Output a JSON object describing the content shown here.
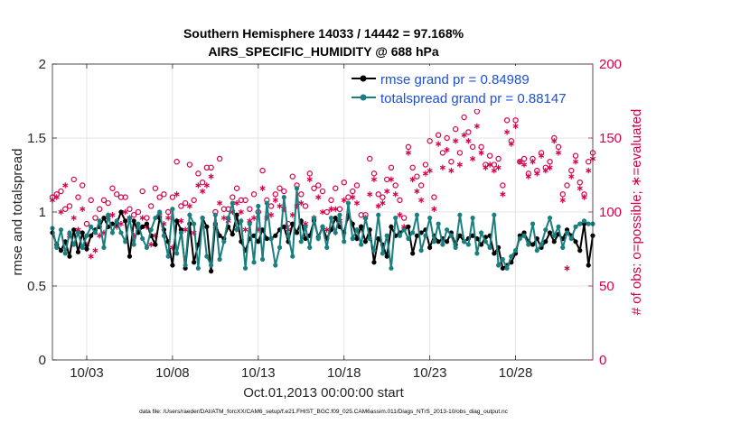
{
  "chart_data": {
    "type": "line",
    "title": "Southern Hemisphere 14033 / 14442 = 97.168%",
    "subtitle": "AIRS_SPECIFIC_HUMIDITY @ 688 hPa",
    "xlabel": "Oct.01,2013 00:00:00 start",
    "ylabel": "rmse and totalspread",
    "ylabel_right": "# of obs: o=possible; ∗=evaluated",
    "footnote": "data file: /Users/raeder/DAI/ATM_forcXX/CAM6_setup/f.e21.FHIST_BGC.f09_025.CAM6assim.011/Diags_NTrS_2013-10/obs_diag_output.nc",
    "x_range_days": [
      1.0,
      32.5
    ],
    "ylim": [
      0,
      2
    ],
    "ylim_right": [
      0,
      200
    ],
    "x_ticks": [
      {
        "day": 3,
        "label": "10/03"
      },
      {
        "day": 8,
        "label": "10/08"
      },
      {
        "day": 13,
        "label": "10/13"
      },
      {
        "day": 18,
        "label": "10/18"
      },
      {
        "day": 23,
        "label": "10/23"
      },
      {
        "day": 28,
        "label": "10/28"
      }
    ],
    "y_ticks": [
      "0",
      "0.5",
      "1",
      "1.5",
      "2"
    ],
    "y_tick_values": [
      0,
      0.5,
      1,
      1.5,
      2
    ],
    "y_right_ticks": [
      "0",
      "50",
      "100",
      "150",
      "200"
    ],
    "y_right_tick_values": [
      0,
      50,
      100,
      150,
      200
    ],
    "series": [
      {
        "name": "rmse grand pr = 0.84989",
        "color": "#000000",
        "x_start_day": 1.0,
        "x_step_day": 0.25,
        "values": [
          0.86,
          0.78,
          0.74,
          0.8,
          0.7,
          0.88,
          0.73,
          0.86,
          0.75,
          0.84,
          0.88,
          0.9,
          0.96,
          0.9,
          0.92,
          0.92,
          1.0,
          0.94,
          0.7,
          0.94,
          0.86,
          0.9,
          0.92,
          0.84,
          0.78,
          0.96,
          0.88,
          0.8,
          0.64,
          0.94,
          0.88,
          0.62,
          0.92,
          0.66,
          0.78,
          0.96,
          0.9,
          0.6,
          0.92,
          0.84,
          0.82,
          0.9,
          0.85,
          0.98,
          0.8,
          0.74,
          0.82,
          0.84,
          0.8,
          0.88,
          0.82,
          0.82,
          0.84,
          0.88,
          0.9,
          0.8,
          0.92,
          0.86,
          0.94,
          0.82,
          0.84,
          0.94,
          0.83,
          0.9,
          0.82,
          0.88,
          0.96,
          0.9,
          0.86,
          0.98,
          0.92,
          0.82,
          0.9,
          0.8,
          0.88,
          0.66,
          0.82,
          0.78,
          0.7,
          0.9,
          0.84,
          0.86,
          0.88,
          0.9,
          0.72,
          0.84,
          0.86,
          0.88,
          0.76,
          0.84,
          0.8,
          0.82,
          0.8,
          0.86,
          0.78,
          0.84,
          0.8,
          0.82,
          0.84,
          0.82,
          0.78,
          0.83,
          0.84,
          0.72,
          0.76,
          0.62,
          0.64,
          0.66,
          0.72,
          0.84,
          0.86,
          0.8,
          0.78,
          0.82,
          0.76,
          0.8,
          0.86,
          0.8,
          0.85,
          0.82,
          0.88,
          0.84,
          0.8,
          0.74,
          0.92,
          0.64,
          0.84,
          0.82,
          0.86,
          0.8,
          0.94,
          0.9,
          0.92,
          0.88,
          0.94,
          0.96,
          1.0,
          0.92,
          0.8,
          0.86,
          0.9,
          0.78,
          0.98,
          0.86,
          0.92,
          0.84,
          0.8,
          0.82,
          0.9,
          0.86,
          0.78,
          0.9,
          0.84,
          0.82,
          0.88,
          0.9,
          0.96,
          0.86,
          0.8,
          0.84,
          0.94,
          0.58,
          0.9,
          0.96,
          1.0,
          0.9,
          0.84,
          0.86,
          0.8,
          0.9,
          0.84,
          0.86,
          0.94,
          0.86,
          0.78,
          0.84,
          0.98,
          0.84,
          0.92,
          0.8,
          0.88,
          0.84,
          0.78,
          1.06,
          0.76
        ]
      },
      {
        "name": "totalspread grand pr = 0.88147",
        "color": "#1a7f7f",
        "x_start_day": 1.0,
        "x_step_day": 0.25,
        "values": [
          0.89,
          0.76,
          0.88,
          0.72,
          0.86,
          0.78,
          0.86,
          0.76,
          0.84,
          0.9,
          0.86,
          0.94,
          0.76,
          0.98,
          0.86,
          0.94,
          0.86,
          0.8,
          0.96,
          0.78,
          0.92,
          0.82,
          0.76,
          0.88,
          0.96,
          1.0,
          0.84,
          0.7,
          1.02,
          0.72,
          0.86,
          0.64,
          0.98,
          0.92,
          0.62,
          0.96,
          0.7,
          0.64,
          0.98,
          0.68,
          0.8,
          0.96,
          1.06,
          0.88,
          0.94,
          0.62,
          0.92,
          0.66,
          1.04,
          0.68,
          1.06,
          0.82,
          0.64,
          0.76,
          1.1,
          0.84,
          0.7,
          1.16,
          0.8,
          0.9,
          0.76,
          0.96,
          0.82,
          0.9,
          0.76,
          0.96,
          0.86,
          0.98,
          0.8,
          1.06,
          0.82,
          0.88,
          0.78,
          0.96,
          0.82,
          0.74,
          0.98,
          0.72,
          0.84,
          0.62,
          0.96,
          0.84,
          0.88,
          0.82,
          0.86,
          0.98,
          0.74,
          0.84,
          0.96,
          0.8,
          0.92,
          0.78,
          0.88,
          0.84,
          0.76,
          0.98,
          0.8,
          0.78,
          0.96,
          0.72,
          0.86,
          0.8,
          0.76,
          0.98,
          0.64,
          0.68,
          0.62,
          0.7,
          0.74,
          0.82,
          0.84,
          0.78,
          0.92,
          0.74,
          0.78,
          0.88,
          0.96,
          0.84,
          0.9,
          0.76,
          0.86,
          0.82,
          0.9,
          0.92,
          0.94,
          0.92,
          0.92,
          0.96,
          0.94,
          0.9,
          0.94,
          0.92,
          0.92,
          0.9,
          1.0,
          0.98,
          1.02,
          0.94,
          0.96,
          0.88,
          1.0,
          0.92,
          1.04,
          0.96,
          0.96,
          0.92,
          0.9,
          0.88,
          1.02,
          0.86,
          0.84,
          1.0,
          0.88,
          0.92,
          0.94,
          0.88,
          1.0,
          0.9,
          0.88,
          0.94,
          1.04,
          0.86,
          1.02,
          0.92,
          0.94,
          0.9,
          0.96,
          0.92,
          0.88,
          0.94,
          0.9,
          0.96,
          0.92,
          0.84,
          0.94,
          0.88,
          0.96,
          0.86,
          0.92,
          0.88,
          0.92,
          0.84,
          1.14,
          0.84
        ]
      }
    ],
    "obs_possible": {
      "name": "o = possible",
      "color": "#d6004c",
      "x_start_day": 1.0,
      "x_step_day": 0.25,
      "values": [
        110,
        112,
        114,
        102,
        104,
        122,
        110,
        118,
        92,
        108,
        96,
        102,
        108,
        106,
        116,
        112,
        110,
        110,
        102,
        98,
        100,
        114,
        96,
        104,
        116,
        110,
        112,
        100,
        110,
        134,
        104,
        106,
        132,
        108,
        126,
        120,
        130,
        130,
        100,
        136,
        102,
        102,
        110,
        116,
        108,
        108,
        102,
        112,
        100,
        128,
        108,
        104,
        112,
        116,
        114,
        92,
        124,
        118,
        112,
        104,
        126,
        116,
        118,
        114,
        100,
        108,
        116,
        102,
        120,
        110,
        114,
        118,
        98,
        98,
        136,
        126,
        112,
        110,
        122,
        130,
        118,
        108,
        96,
        144,
        130,
        124,
        118,
        132,
        148,
        110,
        152,
        140,
        150,
        134,
        156,
        140,
        164,
        154,
        144,
        168,
        144,
        132,
        138,
        132,
        136,
        118,
        162,
        148,
        162,
        134,
        136,
        126,
        136,
        128,
        140,
        130,
        134,
        150,
        144,
        112,
        118,
        128,
        138,
        120,
        112,
        134,
        140,
        140,
        146,
        138,
        122,
        150,
        112,
        116,
        142,
        130,
        128,
        150,
        128,
        134,
        124,
        116,
        142,
        138,
        152,
        116,
        138,
        130,
        134,
        156,
        150,
        138,
        118,
        122,
        138,
        130,
        140,
        118,
        150,
        158,
        142,
        142,
        140,
        146,
        148,
        144,
        140,
        148,
        140,
        150,
        130,
        148,
        128,
        158,
        154,
        120,
        132,
        140,
        128,
        130,
        128,
        128
      ]
    },
    "obs_evaluated": {
      "name": "∗ = evaluated",
      "color": "#d6004c",
      "x_start_day": 1.0,
      "x_step_day": 0.25,
      "values": [
        108,
        110,
        100,
        118,
        84,
        96,
        88,
        102,
        78,
        70,
        74,
        84,
        86,
        96,
        98,
        90,
        92,
        100,
        96,
        84,
        88,
        96,
        90,
        78,
        84,
        98,
        92,
        96,
        76,
        112,
        94,
        88,
        104,
        86,
        118,
        114,
        118,
        124,
        90,
        106,
        96,
        94,
        100,
        106,
        100,
        88,
        94,
        96,
        88,
        116,
        96,
        98,
        108,
        104,
        102,
        88,
        98,
        104,
        106,
        92,
        122,
        96,
        110,
        100,
        88,
        102,
        102,
        94,
        108,
        96,
        110,
        106,
        90,
        96,
        112,
        122,
        104,
        106,
        114,
        122,
        112,
        98,
        90,
        140,
        122,
        114,
        108,
        126,
        128,
        102,
        146,
        130,
        142,
        128,
        148,
        132,
        152,
        148,
        136,
        158,
        140,
        130,
        132,
        128,
        130,
        112,
        154,
        146,
        158,
        134,
        132,
        124,
        134,
        126,
        138,
        128,
        130,
        148,
        140,
        108,
        62,
        124,
        134,
        116,
        110,
        128,
        136,
        136,
        144,
        134,
        118,
        148,
        110,
        114,
        140,
        128,
        126,
        148,
        126,
        130,
        120,
        112,
        140,
        136,
        150,
        112,
        134,
        128,
        130,
        152,
        146,
        134,
        116,
        120,
        134,
        128,
        136,
        116,
        148,
        154,
        138,
        140,
        138,
        142,
        146,
        142,
        136,
        146,
        136,
        148,
        128,
        146,
        126,
        154,
        150,
        118,
        130,
        136,
        124,
        126,
        128,
        0
      ]
    }
  },
  "legend": {
    "rmse_label": "rmse grand pr = 0.84989",
    "spread_label": "totalspread grand pr = 0.88147"
  }
}
